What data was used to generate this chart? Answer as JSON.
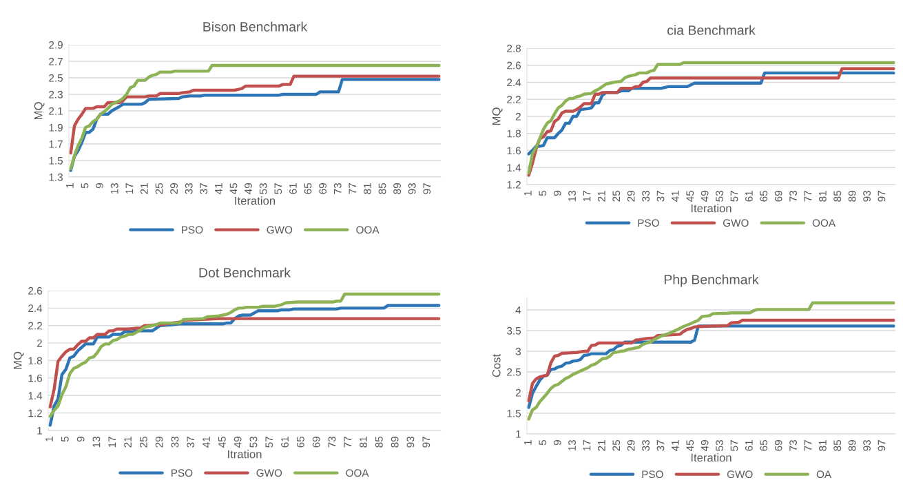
{
  "chart_data": [
    {
      "type": "line",
      "title": "Bison Benchmark",
      "xlabel": "Iteration",
      "ylabel": "MQ",
      "xlim": [
        0.5,
        100.5
      ],
      "xticks": [
        1,
        5,
        9,
        13,
        17,
        21,
        25,
        29,
        33,
        37,
        41,
        45,
        49,
        53,
        57,
        61,
        65,
        69,
        73,
        77,
        81,
        85,
        89,
        93,
        97
      ],
      "ylim": [
        1.3,
        2.9
      ],
      "yticks": [
        1.3,
        1.5,
        1.7,
        1.9,
        2.1,
        2.3,
        2.5,
        2.7,
        2.9
      ],
      "grid": "y",
      "legend": "bottom",
      "line_style": "solid",
      "series": [
        {
          "name": "PSO",
          "color": "#2e75b6",
          "x": [
            1,
            2,
            3,
            4,
            5,
            6,
            7,
            8,
            9,
            11,
            12,
            14,
            15,
            20,
            21,
            22,
            30,
            31,
            33,
            36,
            37,
            57,
            58,
            67,
            68,
            73,
            74,
            100
          ],
          "values": [
            1.38,
            1.55,
            1.62,
            1.72,
            1.84,
            1.84,
            1.88,
            2.0,
            2.06,
            2.06,
            2.1,
            2.15,
            2.18,
            2.18,
            2.2,
            2.24,
            2.25,
            2.27,
            2.28,
            2.28,
            2.29,
            2.29,
            2.3,
            2.3,
            2.33,
            2.33,
            2.48,
            2.48
          ]
        },
        {
          "name": "GWO",
          "color": "#c0504d",
          "x": [
            1,
            2,
            3,
            4,
            5,
            7,
            8,
            10,
            11,
            14,
            15,
            16,
            21,
            22,
            24,
            25,
            30,
            31,
            33,
            34,
            45,
            46,
            47,
            48,
            57,
            58,
            60,
            61,
            100
          ],
          "values": [
            1.59,
            1.92,
            2.0,
            2.06,
            2.13,
            2.13,
            2.15,
            2.15,
            2.2,
            2.2,
            2.22,
            2.27,
            2.27,
            2.28,
            2.28,
            2.31,
            2.31,
            2.32,
            2.33,
            2.35,
            2.35,
            2.36,
            2.37,
            2.4,
            2.4,
            2.42,
            2.42,
            2.52,
            2.52
          ]
        },
        {
          "name": "OOA",
          "color": "#8db356",
          "x": [
            1,
            2,
            3,
            4,
            5,
            6,
            7,
            8,
            9,
            10,
            11,
            12,
            13,
            14,
            15,
            16,
            17,
            18,
            19,
            21,
            22,
            23,
            24,
            25,
            28,
            29,
            38,
            39,
            100
          ],
          "values": [
            1.4,
            1.56,
            1.68,
            1.77,
            1.9,
            1.92,
            1.97,
            2.0,
            2.06,
            2.09,
            2.13,
            2.18,
            2.2,
            2.22,
            2.25,
            2.3,
            2.38,
            2.4,
            2.47,
            2.47,
            2.51,
            2.53,
            2.54,
            2.57,
            2.57,
            2.58,
            2.58,
            2.65,
            2.65
          ]
        }
      ]
    },
    {
      "type": "line",
      "title": "cia Benchmark",
      "xlabel": "Iteration",
      "ylabel": "MQ",
      "xlim": [
        0.5,
        100.5
      ],
      "xticks": [
        1,
        5,
        9,
        13,
        17,
        21,
        25,
        29,
        33,
        37,
        41,
        45,
        49,
        53,
        57,
        61,
        65,
        69,
        73,
        77,
        81,
        85,
        89,
        93,
        97
      ],
      "ylim": [
        1.2,
        2.8
      ],
      "yticks": [
        1.2,
        1.4,
        1.6,
        1.8,
        2,
        2.2,
        2.4,
        2.6,
        2.8
      ],
      "grid": "y",
      "legend": "bottom",
      "line_style": "solid",
      "series": [
        {
          "name": "PSO",
          "color": "#2e75b6",
          "x": [
            1,
            2,
            3,
            4,
            5,
            6,
            8,
            9,
            10,
            11,
            12,
            13,
            14,
            15,
            17,
            18,
            19,
            20,
            21,
            22,
            25,
            26,
            28,
            29,
            37,
            39,
            44,
            45,
            46,
            64,
            65,
            100
          ],
          "values": [
            1.56,
            1.6,
            1.65,
            1.65,
            1.66,
            1.75,
            1.75,
            1.8,
            1.84,
            1.92,
            1.92,
            2.0,
            2.0,
            2.08,
            2.09,
            2.1,
            2.16,
            2.16,
            2.25,
            2.28,
            2.28,
            2.3,
            2.3,
            2.33,
            2.33,
            2.35,
            2.35,
            2.37,
            2.39,
            2.39,
            2.51,
            2.51
          ]
        },
        {
          "name": "GWO",
          "color": "#c0504d",
          "x": [
            1,
            2,
            3,
            4,
            5,
            6,
            7,
            8,
            9,
            10,
            11,
            13,
            14,
            15,
            16,
            18,
            19,
            20,
            21,
            25,
            26,
            29,
            30,
            31,
            32,
            33,
            34,
            85,
            86,
            100
          ],
          "values": [
            1.31,
            1.45,
            1.62,
            1.74,
            1.76,
            1.82,
            1.83,
            1.94,
            1.97,
            2.04,
            2.06,
            2.06,
            2.08,
            2.11,
            2.15,
            2.15,
            2.26,
            2.26,
            2.28,
            2.28,
            2.33,
            2.33,
            2.35,
            2.35,
            2.4,
            2.41,
            2.45,
            2.45,
            2.56,
            2.56
          ]
        },
        {
          "name": "OOA",
          "color": "#8db356",
          "x": [
            1,
            2,
            3,
            4,
            5,
            6,
            7,
            8,
            9,
            10,
            11,
            12,
            13,
            14,
            15,
            16,
            18,
            19,
            20,
            21,
            22,
            24,
            26,
            27,
            28,
            29,
            30,
            31,
            33,
            34,
            35,
            36,
            42,
            43,
            100
          ],
          "values": [
            1.34,
            1.56,
            1.64,
            1.74,
            1.85,
            1.92,
            1.95,
            2.03,
            2.1,
            2.13,
            2.18,
            2.21,
            2.21,
            2.23,
            2.24,
            2.26,
            2.27,
            2.3,
            2.32,
            2.35,
            2.38,
            2.4,
            2.41,
            2.45,
            2.47,
            2.48,
            2.49,
            2.51,
            2.51,
            2.53,
            2.54,
            2.61,
            2.61,
            2.63,
            2.63
          ]
        }
      ]
    },
    {
      "type": "line",
      "title": "Dot Benchmark",
      "xlabel": "Itration",
      "ylabel": "MQ",
      "xlim": [
        0.5,
        100.5
      ],
      "xticks": [
        1,
        5,
        9,
        13,
        17,
        21,
        25,
        29,
        33,
        37,
        41,
        45,
        49,
        53,
        57,
        61,
        65,
        69,
        73,
        77,
        81,
        85,
        89,
        93,
        97
      ],
      "ylim": [
        1,
        2.6
      ],
      "yticks": [
        1,
        1.2,
        1.4,
        1.6,
        1.8,
        2,
        2.2,
        2.4,
        2.6
      ],
      "grid": "y",
      "legend": "bottom",
      "line_style": "solid",
      "series": [
        {
          "name": "PSO",
          "color": "#2e75b6",
          "x": [
            1,
            2,
            3,
            4,
            5,
            6,
            7,
            8,
            9,
            10,
            12,
            13,
            16,
            17,
            19,
            20,
            22,
            23,
            27,
            29,
            32,
            34,
            45,
            46,
            47,
            48,
            49,
            50,
            52,
            54,
            59,
            60,
            62,
            63,
            74,
            75,
            86,
            87,
            100
          ],
          "values": [
            1.06,
            1.28,
            1.36,
            1.64,
            1.7,
            1.83,
            1.85,
            1.91,
            1.95,
            1.99,
            1.99,
            2.07,
            2.07,
            2.1,
            2.1,
            2.13,
            2.13,
            2.14,
            2.14,
            2.2,
            2.21,
            2.22,
            2.22,
            2.23,
            2.23,
            2.28,
            2.31,
            2.32,
            2.32,
            2.37,
            2.37,
            2.38,
            2.38,
            2.39,
            2.39,
            2.4,
            2.4,
            2.43,
            2.43
          ]
        },
        {
          "name": "GWO",
          "color": "#c0504d",
          "x": [
            1,
            2,
            3,
            4,
            5,
            6,
            7,
            8,
            9,
            10,
            11,
            12,
            13,
            15,
            16,
            17,
            18,
            21,
            23,
            24,
            25,
            26,
            28,
            29,
            34,
            35,
            40,
            44,
            100
          ],
          "values": [
            1.27,
            1.47,
            1.79,
            1.85,
            1.9,
            1.93,
            1.93,
            1.98,
            2.02,
            2.02,
            2.06,
            2.06,
            2.1,
            2.1,
            2.14,
            2.14,
            2.16,
            2.16,
            2.17,
            2.17,
            2.2,
            2.2,
            2.21,
            2.21,
            2.24,
            2.26,
            2.27,
            2.28,
            2.28
          ]
        },
        {
          "name": "OOA",
          "color": "#8db356",
          "x": [
            1,
            2,
            3,
            4,
            5,
            6,
            7,
            8,
            9,
            10,
            11,
            12,
            13,
            14,
            15,
            16,
            17,
            18,
            19,
            20,
            21,
            22,
            24,
            25,
            26,
            28,
            29,
            34,
            35,
            40,
            41,
            44,
            46,
            47,
            48,
            49,
            50,
            51,
            54,
            55,
            58,
            60,
            61,
            64,
            73,
            74,
            75,
            76,
            100
          ],
          "values": [
            1.16,
            1.23,
            1.28,
            1.41,
            1.5,
            1.65,
            1.71,
            1.73,
            1.76,
            1.78,
            1.83,
            1.84,
            1.89,
            1.96,
            1.99,
            1.99,
            2.03,
            2.04,
            2.07,
            2.08,
            2.1,
            2.1,
            2.15,
            2.18,
            2.19,
            2.21,
            2.23,
            2.23,
            2.27,
            2.28,
            2.3,
            2.31,
            2.33,
            2.35,
            2.38,
            2.4,
            2.4,
            2.41,
            2.41,
            2.42,
            2.42,
            2.44,
            2.46,
            2.47,
            2.47,
            2.48,
            2.48,
            2.56,
            2.56
          ]
        }
      ]
    },
    {
      "type": "line",
      "title": "Php Benchmark",
      "xlabel": "Iteration",
      "ylabel": "Cost",
      "xlim": [
        0.5,
        100.5
      ],
      "xticks": [
        1,
        5,
        9,
        13,
        17,
        21,
        25,
        29,
        33,
        37,
        41,
        45,
        49,
        53,
        57,
        61,
        65,
        69,
        73,
        77,
        81,
        85,
        89,
        93,
        97
      ],
      "ylim": [
        1,
        4.3
      ],
      "yticks": [
        1,
        1.5,
        2,
        2.5,
        3,
        3.5,
        4
      ],
      "grid": "y",
      "legend": "bottom",
      "line_style": "solid",
      "series": [
        {
          "name": "PSO",
          "color": "#2e75b6",
          "x": [
            1,
            2,
            3,
            4,
            5,
            6,
            7,
            8,
            9,
            10,
            11,
            12,
            13,
            14,
            15,
            16,
            17,
            18,
            22,
            23,
            24,
            25,
            26,
            27,
            45,
            46,
            47,
            100
          ],
          "values": [
            1.64,
            1.98,
            2.15,
            2.3,
            2.4,
            2.42,
            2.56,
            2.57,
            2.62,
            2.64,
            2.71,
            2.72,
            2.76,
            2.77,
            2.8,
            2.9,
            2.91,
            2.94,
            2.94,
            3.02,
            3.04,
            3.12,
            3.14,
            3.22,
            3.22,
            3.27,
            3.61,
            3.61
          ]
        },
        {
          "name": "GWO",
          "color": "#c0504d",
          "x": [
            1,
            2,
            3,
            4,
            5,
            6,
            7,
            8,
            9,
            10,
            12,
            14,
            16,
            17,
            18,
            19,
            20,
            29,
            30,
            31,
            33,
            35,
            36,
            42,
            43,
            44,
            45,
            46,
            48,
            55,
            56,
            58,
            59,
            100
          ],
          "values": [
            1.8,
            2.22,
            2.33,
            2.38,
            2.4,
            2.42,
            2.72,
            2.88,
            2.9,
            2.95,
            2.96,
            2.97,
            3.0,
            3.0,
            3.14,
            3.15,
            3.2,
            3.2,
            3.27,
            3.28,
            3.31,
            3.32,
            3.38,
            3.41,
            3.48,
            3.53,
            3.55,
            3.59,
            3.6,
            3.62,
            3.69,
            3.7,
            3.75,
            3.75
          ]
        },
        {
          "name": "OA",
          "color": "#8db356",
          "x": [
            1,
            2,
            3,
            4,
            5,
            6,
            7,
            8,
            9,
            10,
            11,
            12,
            13,
            14,
            15,
            16,
            17,
            18,
            19,
            20,
            21,
            22,
            23,
            24,
            25,
            26,
            27,
            28,
            29,
            31,
            32,
            33,
            34,
            35,
            37,
            39,
            41,
            43,
            45,
            47,
            48,
            50,
            51,
            55,
            56,
            61,
            62,
            63,
            77,
            78,
            100
          ],
          "values": [
            1.36,
            1.58,
            1.64,
            1.78,
            1.88,
            1.98,
            2.1,
            2.17,
            2.2,
            2.27,
            2.34,
            2.38,
            2.44,
            2.48,
            2.52,
            2.56,
            2.6,
            2.66,
            2.69,
            2.75,
            2.82,
            2.83,
            2.88,
            2.97,
            2.98,
            3.0,
            3.01,
            3.05,
            3.06,
            3.1,
            3.17,
            3.2,
            3.22,
            3.28,
            3.37,
            3.43,
            3.51,
            3.6,
            3.67,
            3.75,
            3.84,
            3.86,
            3.91,
            3.92,
            3.93,
            3.93,
            3.98,
            4.01,
            4.01,
            4.17,
            4.17
          ]
        }
      ]
    }
  ]
}
